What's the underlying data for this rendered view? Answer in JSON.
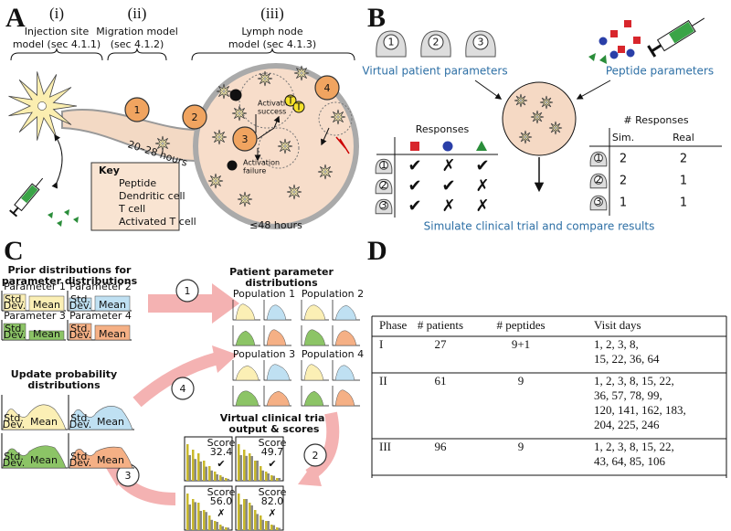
{
  "panel_a": {
    "letter": "A",
    "stages": [
      {
        "numeral": "(i)",
        "title_lines": [
          "Injection site",
          "model (sec 4.1.1)"
        ]
      },
      {
        "numeral": "(ii)",
        "title_lines": [
          "Migration model",
          "(sec 4.1.2)"
        ]
      },
      {
        "numeral": "(iii)",
        "title_lines": [
          "Lymph node",
          "model (sec 4.1.3)"
        ]
      }
    ],
    "steps": [
      "1",
      "2",
      "3",
      "4"
    ],
    "migration_time": "20–28 hours",
    "lymph_time": "≤48 hours",
    "activation_success": [
      "Activation",
      "success"
    ],
    "activation_failure": [
      "Activation",
      "failure"
    ],
    "t_label": "T",
    "key": {
      "title": "Key",
      "items": [
        "Peptide",
        "Dendritic cell",
        "T cell",
        "Activated T cell"
      ]
    }
  },
  "panel_b": {
    "letter": "B",
    "patients": [
      "1",
      "2",
      "3"
    ],
    "patient_caption": "Virtual patient parameters",
    "peptide_caption": "Peptide parameters",
    "responses_title": "Responses",
    "responses": [
      [
        "✔",
        "✗",
        "✔"
      ],
      [
        "✔",
        "✔",
        "✗"
      ],
      [
        "✔",
        "✗",
        "✗"
      ]
    ],
    "count_title": "# Responses",
    "count_headers": [
      "Sim.",
      "Real"
    ],
    "counts": [
      [
        2,
        2
      ],
      [
        2,
        1
      ],
      [
        1,
        1
      ]
    ],
    "caption": "Simulate clinical trial and compare results"
  },
  "panel_c": {
    "letter": "C",
    "steps": [
      "1",
      "2",
      "3",
      "4"
    ],
    "prior_title": [
      "Prior distributions for",
      "parameter distributions"
    ],
    "parameters": [
      "Parameter 1",
      "Parameter 2",
      "Parameter 3",
      "Parameter 4"
    ],
    "std_dev": [
      "Std.",
      "Dev."
    ],
    "mean": "Mean",
    "patient_title": [
      "Patient parameter",
      "distributions"
    ],
    "populations": [
      "Population 1",
      "Population 2",
      "Population 3",
      "Population 4"
    ],
    "update_title": [
      "Update probability",
      "distributions"
    ],
    "trial_title": [
      "Virtual clinical trial",
      "output & scores"
    ],
    "score_label": "Score",
    "scores": [
      "32.4",
      "49.7",
      "56.0",
      "82.0"
    ],
    "score_marks": [
      "✔",
      "✔",
      "✗",
      "✗"
    ]
  },
  "panel_d": {
    "letter": "D",
    "headers": [
      "Phase",
      "# patients",
      "# peptides",
      "Visit days"
    ],
    "rows": [
      {
        "phase": "I",
        "patients": 27,
        "peptides": "9+1",
        "visit_days": [
          "1, 2, 3, 8,",
          "15, 22, 36, 64"
        ]
      },
      {
        "phase": "II",
        "patients": 61,
        "peptides": 9,
        "visit_days": [
          "1, 2, 3, 8, 15, 22,",
          "36, 57, 78, 99,",
          "120, 141, 162, 183,",
          "204, 225, 246"
        ]
      },
      {
        "phase": "III",
        "patients": 96,
        "peptides": 9,
        "visit_days": [
          "1, 2, 3, 8, 15, 22,",
          "43, 64, 85, 106"
        ]
      }
    ]
  }
}
